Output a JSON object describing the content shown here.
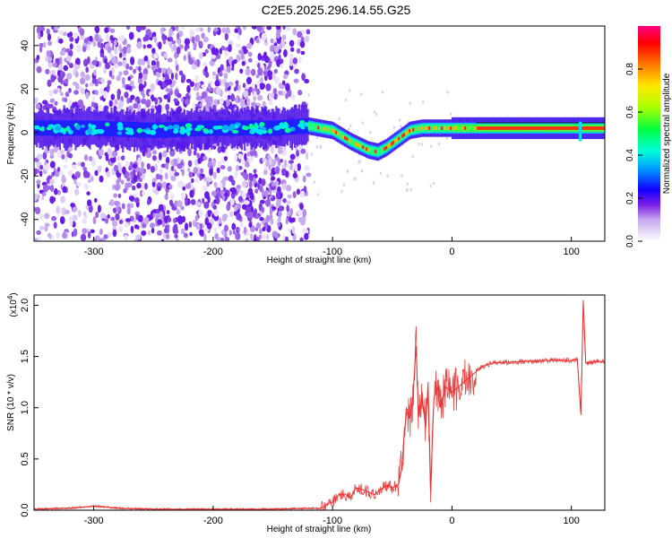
{
  "title": "C2E5.2025.296.14.55.G25",
  "chart_data": [
    {
      "type": "heatmap",
      "name": "spectrogram",
      "xlabel": "Height of straight line (km)",
      "ylabel": "Frequency (Hz)",
      "xlim": [
        -350,
        128
      ],
      "ylim": [
        -50,
        49
      ],
      "xticks": [
        -300,
        -200,
        -100,
        0,
        100
      ],
      "yticks": [
        -40,
        -20,
        0,
        20,
        40
      ],
      "colorbar": {
        "label": "Normalized spectral amplitude",
        "range": [
          0,
          1
        ],
        "ticks": [
          0.0,
          0.2,
          0.4,
          0.6,
          0.8
        ],
        "tick_labels": [
          "0.0",
          "0.2",
          "0.4",
          "0.6",
          "0.8"
        ],
        "colors": [
          "#ffffff",
          "#d9c8f2",
          "#9a5ce8",
          "#5a00e8",
          "#0000ff",
          "#00ffff",
          "#00ff00",
          "#ffff00",
          "#ff8800",
          "#ff0000",
          "#ff0080"
        ]
      },
      "ridge": {
        "x": [
          -350,
          -300,
          -250,
          -200,
          -150,
          -120,
          -100,
          -85,
          -70,
          -62,
          -55,
          -45,
          -35,
          -25,
          -15,
          0,
          20,
          50,
          100,
          128
        ],
        "y": [
          2,
          2,
          1,
          2,
          2,
          3,
          1,
          -4,
          -8,
          -9,
          -7,
          -3,
          1,
          2,
          2,
          2,
          2,
          2,
          2,
          2
        ]
      }
    },
    {
      "type": "line",
      "name": "snr",
      "xlabel": "Height of straight line (km)",
      "ylabel": "SNR (10 * v/v)",
      "exponent_label": "(x10",
      "exponent_power": "4",
      "exponent_close": ")",
      "xlim": [
        -350,
        128
      ],
      "ylim": [
        0,
        2.1
      ],
      "xticks": [
        -300,
        -200,
        -100,
        0,
        100
      ],
      "yticks": [
        0.0,
        0.5,
        1.0,
        1.5,
        2.0
      ],
      "ytick_labels": [
        "0.0",
        "0.5",
        "1.0",
        "1.5",
        "2.0"
      ],
      "series": [
        {
          "name": "SNR",
          "color": "#e83030",
          "x": [
            -350,
            -320,
            -300,
            -280,
            -250,
            -220,
            -200,
            -150,
            -110,
            -100,
            -95,
            -90,
            -85,
            -80,
            -75,
            -70,
            -65,
            -60,
            -55,
            -50,
            -45,
            -42,
            -40,
            -38,
            -35,
            -33,
            -30,
            -28,
            -25,
            -22,
            -20,
            -18,
            -15,
            -12,
            -10,
            -5,
            0,
            5,
            10,
            15,
            20,
            25,
            30,
            35,
            40,
            60,
            80,
            100,
            105,
            108,
            110,
            112,
            115,
            120,
            128
          ],
          "y": [
            0.01,
            0.02,
            0.04,
            0.02,
            0.01,
            0.01,
            0.01,
            0.01,
            0.02,
            0.08,
            0.15,
            0.16,
            0.12,
            0.22,
            0.2,
            0.18,
            0.15,
            0.2,
            0.24,
            0.22,
            0.25,
            0.4,
            0.75,
            0.95,
            0.9,
            1.05,
            1.6,
            0.9,
            1.1,
            0.8,
            1.25,
            0.2,
            1.1,
            1.2,
            1.0,
            1.2,
            1.15,
            1.2,
            1.25,
            1.3,
            1.35,
            1.4,
            1.42,
            1.44,
            1.44,
            1.45,
            1.46,
            1.46,
            1.48,
            0.93,
            2.05,
            1.44,
            1.44,
            1.45,
            1.45
          ]
        }
      ]
    }
  ]
}
